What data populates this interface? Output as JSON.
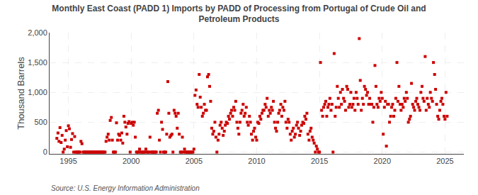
{
  "chart_data": {
    "type": "scatter",
    "title": "Monthly East Coast (PADD 1) Imports by PADD of Processing from Portugal of Crude Oil and\nPetroleum Products",
    "ylabel": "Thousand Barrels",
    "annotations": [
      "Source: U.S. Energy Information Administration"
    ],
    "color": "#cc0000",
    "marker": "square",
    "grid": true,
    "xlim": [
      1993.5,
      2026.5
    ],
    "ylim": [
      -30,
      2000
    ],
    "xticks": [
      1995,
      2000,
      2005,
      2010,
      2015,
      2020,
      2025
    ],
    "yticks": [
      0,
      500,
      {
        "value": 1000,
        "label": "1,000"
      },
      {
        "value": 1500,
        "label": "1,500"
      },
      {
        "value": 2000,
        "label": "2,000"
      }
    ],
    "x": [
      1994.08,
      1994.17,
      1994.25,
      1994.33,
      1994.42,
      1994.5,
      1994.58,
      1994.67,
      1994.75,
      1994.83,
      1994.92,
      1995.0,
      1995.08,
      1995.17,
      1995.25,
      1995.33,
      1995.42,
      1995.5,
      1995.58,
      1995.67,
      1995.75,
      1995.83,
      1995.92,
      1996.0,
      1996.08,
      1996.17,
      1996.25,
      1996.33,
      1996.42,
      1996.5,
      1996.58,
      1996.67,
      1996.75,
      1996.83,
      1996.92,
      1997.0,
      1997.08,
      1997.17,
      1997.25,
      1997.33,
      1997.42,
      1997.5,
      1997.58,
      1997.67,
      1997.75,
      1997.83,
      1997.92,
      1998.0,
      1998.08,
      1998.17,
      1998.25,
      1998.33,
      1998.42,
      1998.5,
      1998.58,
      1998.67,
      1998.75,
      1998.83,
      1998.92,
      1999.0,
      1999.08,
      1999.17,
      1999.25,
      1999.33,
      1999.42,
      1999.5,
      1999.58,
      1999.67,
      1999.75,
      1999.83,
      1999.92,
      2000.0,
      2000.08,
      2000.17,
      2000.25,
      2000.33,
      2000.42,
      2000.5,
      2000.58,
      2000.67,
      2000.75,
      2000.83,
      2000.92,
      2001.0,
      2001.08,
      2001.17,
      2001.25,
      2001.33,
      2001.42,
      2001.5,
      2001.58,
      2001.67,
      2001.75,
      2001.83,
      2001.92,
      2002.0,
      2002.08,
      2002.17,
      2002.25,
      2002.33,
      2002.42,
      2002.5,
      2002.58,
      2002.67,
      2002.75,
      2002.83,
      2002.92,
      2003.0,
      2003.08,
      2003.17,
      2003.25,
      2003.33,
      2003.42,
      2003.5,
      2003.58,
      2003.67,
      2003.75,
      2003.83,
      2003.92,
      2004.0,
      2004.08,
      2004.17,
      2004.25,
      2004.33,
      2004.42,
      2004.5,
      2004.58,
      2004.67,
      2004.75,
      2004.83,
      2004.92,
      2005.0,
      2005.08,
      2005.17,
      2005.25,
      2005.33,
      2005.42,
      2005.5,
      2005.58,
      2005.67,
      2005.75,
      2005.83,
      2005.92,
      2006.0,
      2006.08,
      2006.17,
      2006.25,
      2006.33,
      2006.42,
      2006.5,
      2006.58,
      2006.67,
      2006.75,
      2006.83,
      2006.92,
      2007.0,
      2007.08,
      2007.17,
      2007.25,
      2007.33,
      2007.42,
      2007.5,
      2007.58,
      2007.67,
      2007.75,
      2007.83,
      2007.92,
      2008.0,
      2008.08,
      2008.17,
      2008.25,
      2008.33,
      2008.42,
      2008.5,
      2008.58,
      2008.67,
      2008.75,
      2008.83,
      2008.92,
      2009.0,
      2009.08,
      2009.17,
      2009.25,
      2009.33,
      2009.42,
      2009.5,
      2009.58,
      2009.67,
      2009.75,
      2009.83,
      2009.92,
      2010.0,
      2010.08,
      2010.17,
      2010.25,
      2010.33,
      2010.42,
      2010.5,
      2010.58,
      2010.67,
      2010.75,
      2010.83,
      2010.92,
      2011.0,
      2011.08,
      2011.17,
      2011.25,
      2011.33,
      2011.42,
      2011.5,
      2011.58,
      2011.67,
      2011.75,
      2011.83,
      2011.92,
      2012.0,
      2012.08,
      2012.17,
      2012.25,
      2012.33,
      2012.42,
      2012.5,
      2012.58,
      2012.67,
      2012.75,
      2012.83,
      2012.92,
      2013.0,
      2013.08,
      2013.17,
      2013.25,
      2013.33,
      2013.42,
      2013.5,
      2013.58,
      2013.67,
      2013.75,
      2013.83,
      2013.92,
      2014.0,
      2014.08,
      2014.17,
      2014.25,
      2014.33,
      2014.42,
      2014.5,
      2014.58,
      2014.67,
      2014.75,
      2014.83,
      2014.92,
      2015.0,
      2015.08,
      2015.17,
      2015.25,
      2015.33,
      2015.42,
      2015.5,
      2015.58,
      2015.67,
      2015.75,
      2015.83,
      2015.92,
      2016.0,
      2016.08,
      2016.17,
      2016.25,
      2016.33,
      2016.42,
      2016.5,
      2016.58,
      2016.67,
      2016.75,
      2016.83,
      2016.92,
      2017.0,
      2017.08,
      2017.17,
      2017.25,
      2017.33,
      2017.42,
      2017.5,
      2017.58,
      2017.67,
      2017.75,
      2017.83,
      2017.92,
      2018.0,
      2018.08,
      2018.17,
      2018.25,
      2018.33,
      2018.42,
      2018.5,
      2018.58,
      2018.67,
      2018.75,
      2018.83,
      2018.92,
      2019.0,
      2019.08,
      2019.17,
      2019.25,
      2019.33,
      2019.42,
      2019.5,
      2019.58,
      2019.67,
      2019.75,
      2019.83,
      2019.92,
      2020.0,
      2020.08,
      2020.17,
      2020.25,
      2020.33,
      2020.42,
      2020.5,
      2020.58,
      2020.67,
      2020.75,
      2020.83,
      2020.92,
      2021.0,
      2021.08,
      2021.17,
      2021.25,
      2021.33,
      2021.42,
      2021.5,
      2021.58,
      2021.67,
      2021.75,
      2021.83,
      2021.92,
      2022.0,
      2022.08,
      2022.17,
      2022.25,
      2022.33,
      2022.42,
      2022.5,
      2022.58,
      2022.67,
      2022.75,
      2022.83,
      2022.92,
      2023.0,
      2023.08,
      2023.17,
      2023.25,
      2023.33,
      2023.42,
      2023.5,
      2023.58,
      2023.67,
      2023.75,
      2023.83,
      2023.92,
      2024.0,
      2024.08,
      2024.17,
      2024.25,
      2024.33,
      2024.42,
      2024.5,
      2024.58,
      2024.67,
      2024.75,
      2024.83,
      2024.92,
      2025.0,
      2025.08,
      2025.17
    ],
    "values": [
      230,
      320,
      180,
      410,
      160,
      280,
      0,
      50,
      200,
      360,
      90,
      440,
      390,
      80,
      210,
      310,
      0,
      260,
      0,
      0,
      0,
      0,
      0,
      180,
      140,
      0,
      0,
      0,
      0,
      0,
      0,
      0,
      0,
      0,
      0,
      0,
      0,
      0,
      0,
      0,
      0,
      0,
      0,
      0,
      0,
      0,
      0,
      180,
      250,
      300,
      200,
      530,
      580,
      200,
      0,
      0,
      0,
      490,
      200,
      300,
      280,
      200,
      320,
      150,
      600,
      500,
      420,
      300,
      480,
      510,
      0,
      480,
      500,
      450,
      500,
      250,
      0,
      0,
      0,
      50,
      0,
      0,
      0,
      0,
      0,
      50,
      0,
      0,
      0,
      250,
      0,
      0,
      0,
      0,
      0,
      0,
      650,
      700,
      200,
      0,
      500,
      380,
      0,
      0,
      0,
      300,
      1180,
      650,
      250,
      280,
      300,
      0,
      700,
      650,
      600,
      400,
      650,
      300,
      0,
      0,
      250,
      0,
      50,
      0,
      0,
      0,
      0,
      0,
      0,
      0,
      0,
      50,
      950,
      1040,
      800,
      750,
      1300,
      920,
      750,
      600,
      650,
      800,
      700,
      700,
      1260,
      1300,
      1100,
      850,
      400,
      300,
      350,
      500,
      250,
      0,
      200,
      300,
      450,
      500,
      400,
      280,
      350,
      450,
      500,
      480,
      600,
      550,
      650,
      700,
      600,
      750,
      700,
      850,
      500,
      400,
      300,
      500,
      650,
      700,
      800,
      600,
      650,
      750,
      500,
      450,
      600,
      500,
      300,
      200,
      350,
      400,
      250,
      200,
      500,
      480,
      600,
      550,
      650,
      700,
      700,
      800,
      750,
      900,
      600,
      700,
      650,
      750,
      700,
      850,
      500,
      400,
      350,
      500,
      650,
      700,
      800,
      600,
      750,
      700,
      850,
      500,
      400,
      550,
      500,
      300,
      200,
      350,
      400,
      250,
      300,
      450,
      500,
      400,
      280,
      350,
      450,
      500,
      480,
      600,
      550,
      650,
      300,
      200,
      350,
      400,
      250,
      200,
      150,
      0,
      100,
      50,
      0,
      0,
      1500,
      700,
      600,
      750,
      800,
      850,
      600,
      750,
      800,
      900,
      700,
      800,
      0,
      1650,
      600,
      750,
      1100,
      900,
      750,
      1000,
      800,
      1050,
      900,
      850,
      700,
      1100,
      1050,
      750,
      800,
      1000,
      750,
      800,
      900,
      700,
      1000,
      900,
      800,
      1900,
      1200,
      700,
      900,
      800,
      1100,
      1050,
      950,
      1000,
      800,
      900,
      800,
      800,
      500,
      750,
      1450,
      1100,
      800,
      750,
      900,
      850,
      1000,
      900,
      300,
      750,
      850,
      100,
      800,
      800,
      500,
      600,
      750,
      800,
      600,
      700,
      900,
      1500,
      850,
      1100,
      800,
      700,
      800,
      750,
      900,
      850,
      1000,
      900,
      500,
      550,
      600,
      1150,
      800,
      750,
      700,
      850,
      900,
      800,
      750,
      700,
      1000,
      1100,
      900,
      850,
      1600,
      700,
      900,
      800,
      750,
      1000,
      900,
      850,
      1500,
      1300,
      1050,
      800,
      600,
      550,
      700,
      850,
      900,
      800,
      600,
      550,
      1000,
      600
    ]
  }
}
